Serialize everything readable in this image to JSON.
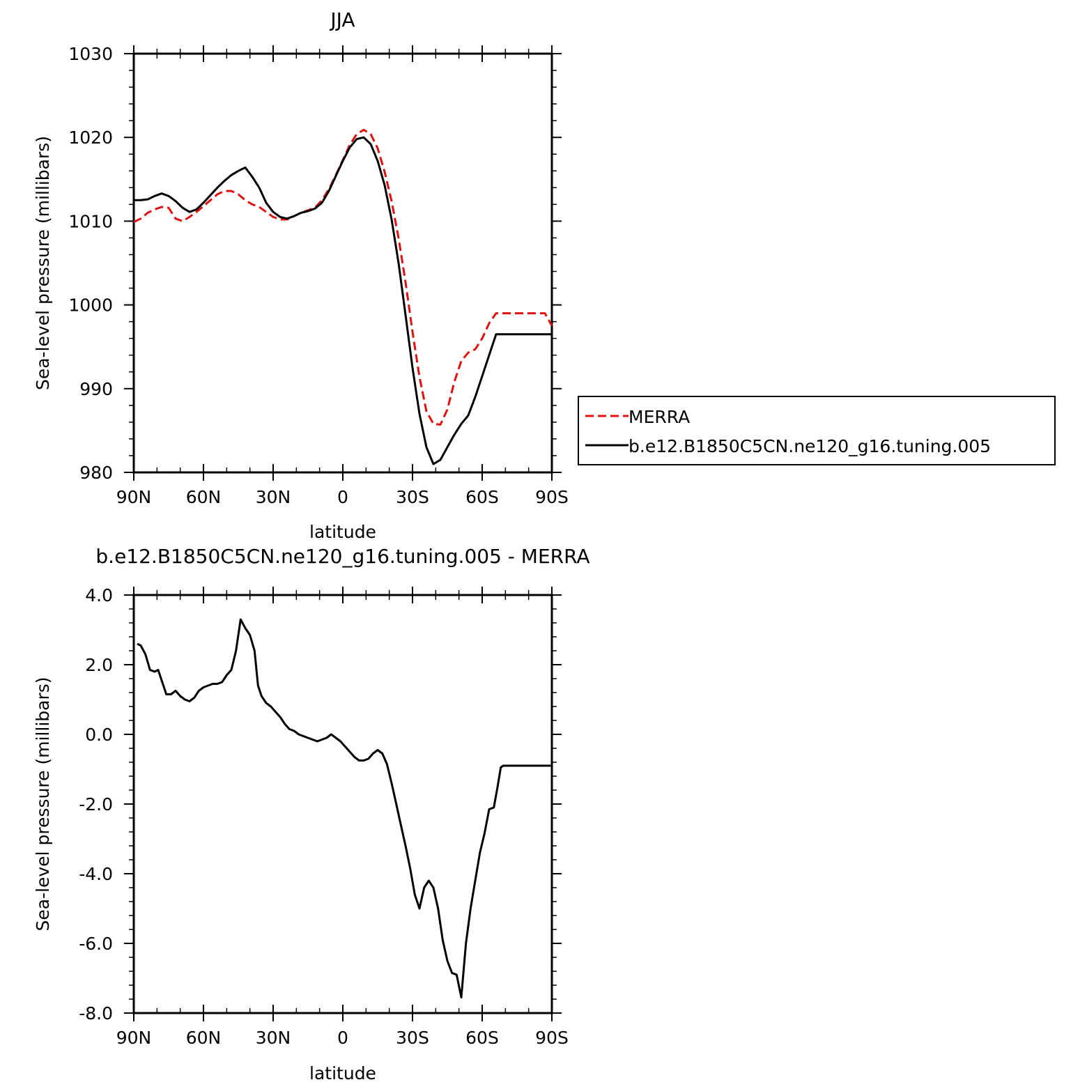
{
  "chart_data": [
    {
      "type": "line",
      "title": "JJA",
      "xlabel": "latitude",
      "ylabel": "Sea-level pressure (millibars)",
      "xlim": [
        90,
        -90
      ],
      "ylim": [
        980,
        1030
      ],
      "xticks": [
        90,
        60,
        30,
        0,
        -30,
        -60,
        -90
      ],
      "xtick_labels": [
        "90N",
        "60N",
        "30N",
        "0",
        "30S",
        "60S",
        "90S"
      ],
      "yticks": [
        980,
        990,
        1000,
        1010,
        1020,
        1030
      ],
      "ytick_labels": [
        "980",
        "990",
        "1000",
        "1010",
        "1020",
        "1030"
      ],
      "legend": "right",
      "series": [
        {
          "name": "MERRA",
          "color": "#e01010",
          "dash": "dashed",
          "x": [
            90,
            87,
            84,
            81,
            78,
            75,
            72,
            69,
            66,
            63,
            60,
            57,
            54,
            51,
            48,
            45,
            42,
            39,
            36,
            33,
            30,
            27,
            24,
            21,
            18,
            15,
            12,
            9,
            6,
            3,
            0,
            -3,
            -6,
            -9,
            -12,
            -15,
            -18,
            -21,
            -24,
            -27,
            -30,
            -33,
            -36,
            -39,
            -42,
            -45,
            -48,
            -51,
            -54,
            -57,
            -60,
            -63,
            -66,
            -69,
            -72,
            -75,
            -78,
            -81,
            -84,
            -87,
            -90
          ],
          "y": [
            1009.9,
            1010.3,
            1011.0,
            1011.4,
            1011.7,
            1011.6,
            1010.3,
            1010.0,
            1010.5,
            1011.1,
            1011.8,
            1012.5,
            1013.2,
            1013.6,
            1013.6,
            1013.2,
            1012.5,
            1012.0,
            1011.7,
            1011.1,
            1010.5,
            1010.2,
            1010.2,
            1010.6,
            1011.0,
            1011.3,
            1011.6,
            1012.5,
            1013.8,
            1015.5,
            1017.3,
            1019.1,
            1020.4,
            1020.9,
            1020.4,
            1018.7,
            1015.9,
            1012.4,
            1008.0,
            1002.7,
            996.8,
            991.4,
            987.3,
            985.8,
            985.7,
            987.5,
            990.8,
            993.3,
            994.3,
            994.7,
            996.0,
            997.8,
            999.0,
            999.0,
            999.0,
            999.0,
            999.0,
            999.0,
            999.0,
            999.0,
            997.5
          ]
        },
        {
          "name": "b.e12.B1850C5CN.ne120_g16.tuning.005",
          "color": "#000000",
          "dash": "solid",
          "x": [
            90,
            87,
            84,
            81,
            78,
            75,
            72,
            69,
            66,
            63,
            60,
            57,
            54,
            51,
            48,
            45,
            42,
            39,
            36,
            33,
            30,
            27,
            24,
            21,
            18,
            15,
            12,
            9,
            6,
            3,
            0,
            -3,
            -6,
            -9,
            -12,
            -15,
            -18,
            -21,
            -24,
            -27,
            -30,
            -33,
            -36,
            -39,
            -42,
            -45,
            -48,
            -51,
            -54,
            -57,
            -60,
            -63,
            -66,
            -69,
            -72,
            -75,
            -78,
            -81,
            -84,
            -87,
            -90
          ],
          "y": [
            1012.5,
            1012.5,
            1012.6,
            1013.0,
            1013.3,
            1013.0,
            1012.4,
            1011.6,
            1011.1,
            1011.4,
            1012.2,
            1013.1,
            1014.0,
            1014.8,
            1015.5,
            1016.0,
            1016.4,
            1015.3,
            1014.0,
            1012.2,
            1011.1,
            1010.5,
            1010.3,
            1010.6,
            1011.0,
            1011.2,
            1011.5,
            1012.2,
            1013.6,
            1015.4,
            1017.2,
            1018.8,
            1019.8,
            1020.0,
            1019.2,
            1017.2,
            1014.3,
            1010.2,
            1005.0,
            998.8,
            992.5,
            987.0,
            983.0,
            981.0,
            981.5,
            983.0,
            984.5,
            985.8,
            986.8,
            989.0,
            991.5,
            994.0,
            996.5,
            996.5,
            996.5,
            996.5,
            996.5,
            996.5,
            996.5,
            996.5,
            996.5
          ]
        }
      ]
    },
    {
      "type": "line",
      "title": "b.e12.B1850C5CN.ne120_g16.tuning.005 - MERRA",
      "xlabel": "latitude",
      "ylabel": "Sea-level pressure (millibars)",
      "xlim": [
        90,
        -90
      ],
      "ylim": [
        -8,
        4
      ],
      "xticks": [
        90,
        60,
        30,
        0,
        -30,
        -60,
        -90
      ],
      "xtick_labels": [
        "90N",
        "60N",
        "30N",
        "0",
        "30S",
        "60S",
        "90S"
      ],
      "yticks": [
        -8,
        -6,
        -4,
        -2,
        0,
        2,
        4
      ],
      "ytick_labels": [
        "-8.0",
        "-6.0",
        "-4.0",
        "-2.0",
        "0.0",
        "2.0",
        "4.0"
      ],
      "series": [
        {
          "color": "#000000",
          "dash": "solid",
          "x": [
            88.5,
            87,
            85,
            83,
            81,
            79.5,
            78,
            76,
            74,
            72,
            70,
            68,
            66,
            64,
            62,
            60,
            58,
            56,
            54,
            52,
            50,
            48,
            46,
            44,
            42,
            40,
            38,
            36.5,
            35,
            33,
            31,
            29,
            27,
            25,
            23,
            21,
            19,
            17,
            15,
            13,
            11,
            9,
            7,
            5,
            3,
            1,
            -1,
            -3,
            -5,
            -7,
            -9,
            -11,
            -13,
            -15,
            -17,
            -19,
            -21,
            -23,
            -25,
            -27,
            -29,
            -31,
            -33,
            -35,
            -37,
            -39,
            -41,
            -43,
            -45,
            -47,
            -49,
            -51,
            -53,
            -55,
            -57,
            -59,
            -61,
            -63,
            -65,
            -66.5,
            -68,
            -69,
            -70,
            -71,
            -72,
            -73,
            -74,
            -75,
            -76,
            -77,
            -78,
            -79,
            -80,
            -81,
            -82,
            -83,
            -84,
            -85,
            -86,
            -87,
            -88,
            -89,
            -89.5
          ],
          "y": [
            2.6,
            2.55,
            2.3,
            1.85,
            1.8,
            1.85,
            1.55,
            1.15,
            1.15,
            1.25,
            1.1,
            1.0,
            0.95,
            1.05,
            1.25,
            1.35,
            1.4,
            1.45,
            1.45,
            1.5,
            1.7,
            1.85,
            2.4,
            3.3,
            3.05,
            2.85,
            2.4,
            1.4,
            1.1,
            0.9,
            0.8,
            0.65,
            0.5,
            0.3,
            0.15,
            0.1,
            0.0,
            -0.05,
            -0.1,
            -0.15,
            -0.2,
            -0.15,
            -0.1,
            0.0,
            -0.1,
            -0.2,
            -0.35,
            -0.5,
            -0.65,
            -0.75,
            -0.75,
            -0.7,
            -0.55,
            -0.45,
            -0.55,
            -0.85,
            -1.4,
            -2.0,
            -2.6,
            -3.2,
            -3.85,
            -4.6,
            -5.0,
            -4.4,
            -4.2,
            -4.4,
            -5.0,
            -5.9,
            -6.5,
            -6.85,
            -6.9,
            -7.55,
            -6.0,
            -5.0,
            -4.2,
            -3.4,
            -2.85,
            -2.15,
            -2.1,
            -1.55,
            -0.95,
            -0.9,
            -0.9,
            -0.9,
            -0.9,
            -0.9,
            -0.9,
            -0.9,
            -0.9,
            -0.9,
            -0.9,
            -0.9,
            -0.9,
            -0.9,
            -0.9,
            -0.9,
            -0.9,
            -0.9,
            -0.9,
            -0.9,
            -0.9,
            -0.9,
            -0.9
          ]
        }
      ]
    }
  ]
}
